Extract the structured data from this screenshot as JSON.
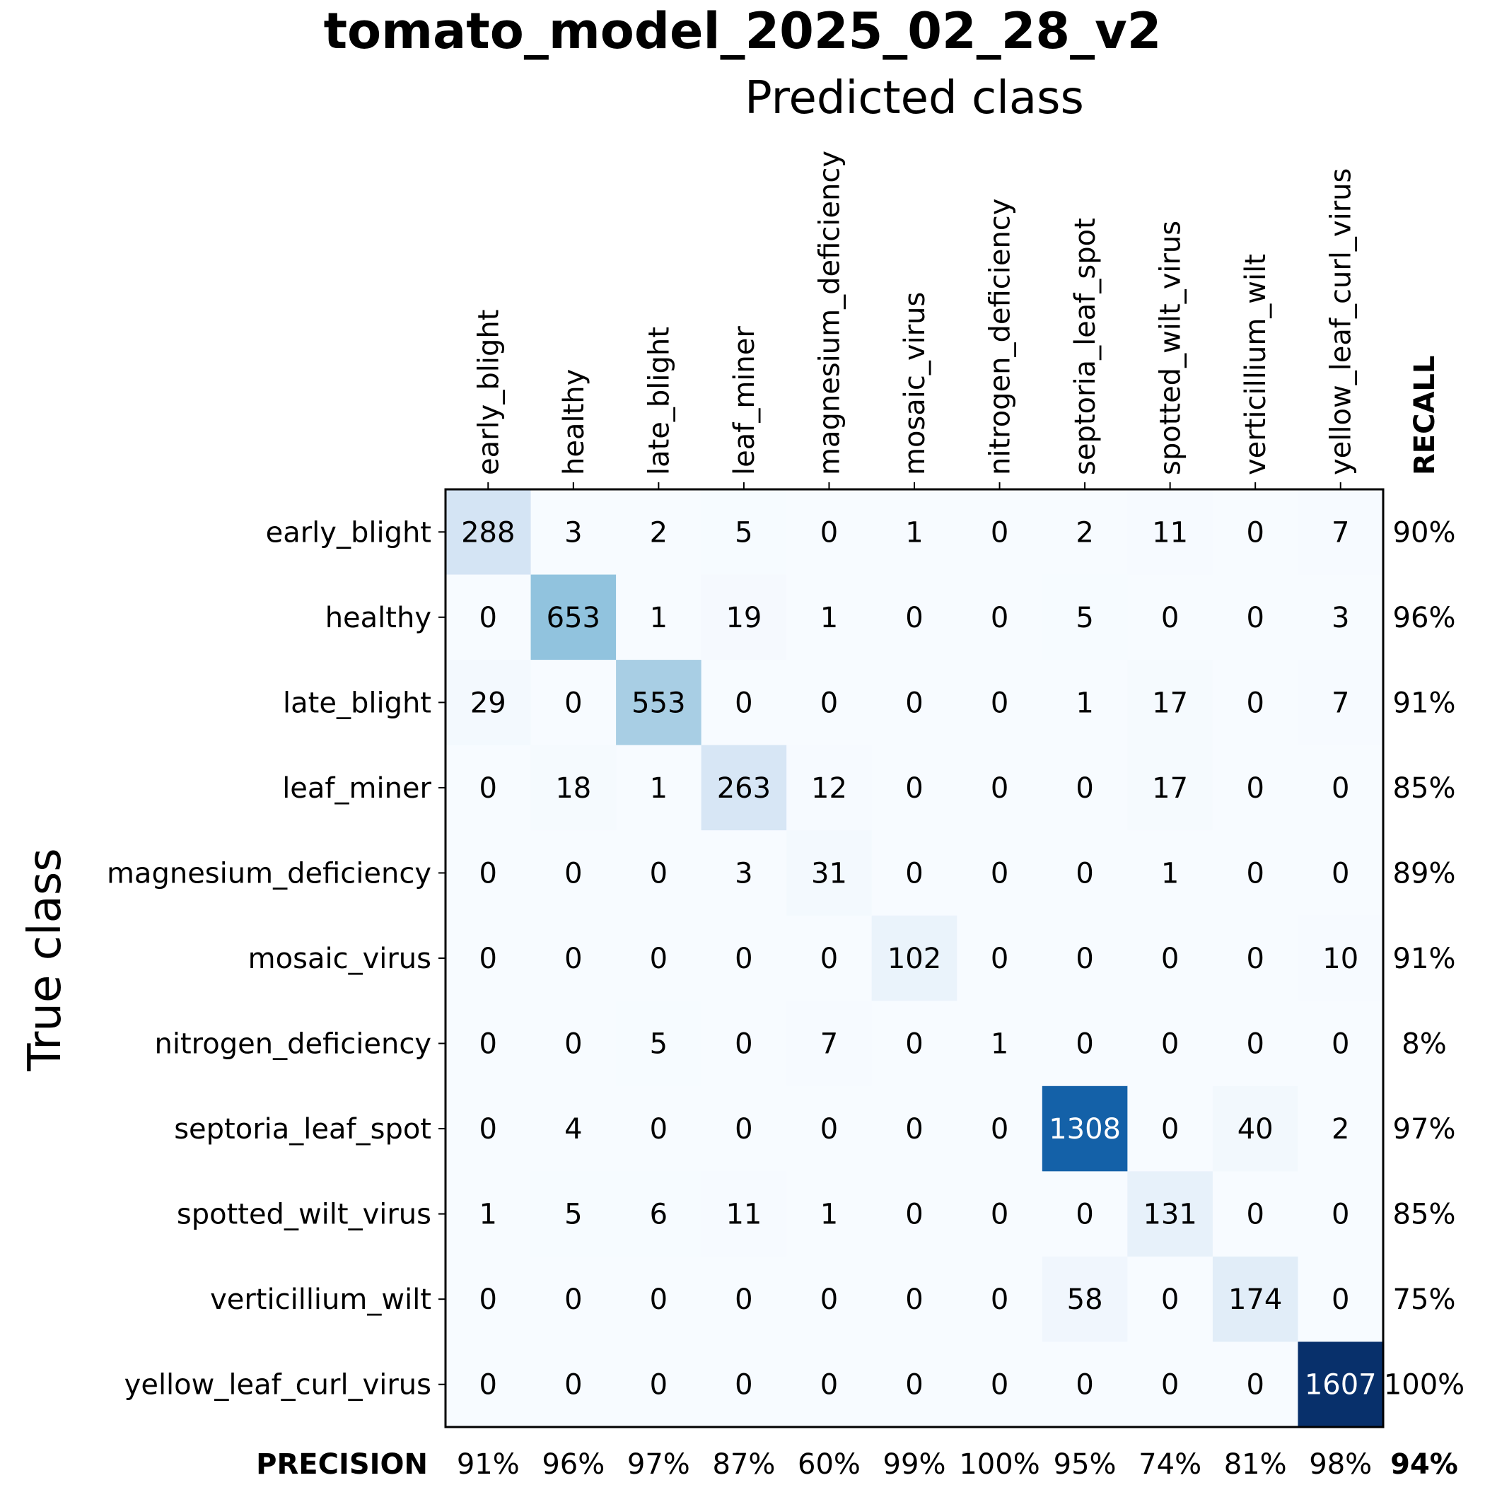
{
  "chart_data": {
    "type": "heatmap",
    "title": "tomato_model_2025_02_28_v2",
    "xlabel": "Predicted class",
    "ylabel": "True class",
    "colormap": "Blues",
    "color_low": "#f7fbff",
    "color_high": "#08306b",
    "value_max": 1607,
    "categories": [
      "early_blight",
      "healthy",
      "late_blight",
      "leaf_miner",
      "magnesium_deficiency",
      "mosaic_virus",
      "nitrogen_deficiency",
      "septoria_leaf_spot",
      "spotted_wilt_virus",
      "verticillium_wilt",
      "yellow_leaf_curl_virus"
    ],
    "matrix": [
      [
        288,
        3,
        2,
        5,
        0,
        1,
        0,
        2,
        11,
        0,
        7
      ],
      [
        0,
        653,
        1,
        19,
        1,
        0,
        0,
        5,
        0,
        0,
        3
      ],
      [
        29,
        0,
        553,
        0,
        0,
        0,
        0,
        1,
        17,
        0,
        7
      ],
      [
        0,
        18,
        1,
        263,
        12,
        0,
        0,
        0,
        17,
        0,
        0
      ],
      [
        0,
        0,
        0,
        3,
        31,
        0,
        0,
        0,
        1,
        0,
        0
      ],
      [
        0,
        0,
        0,
        0,
        0,
        102,
        0,
        0,
        0,
        0,
        10
      ],
      [
        0,
        0,
        5,
        0,
        7,
        0,
        1,
        0,
        0,
        0,
        0
      ],
      [
        0,
        4,
        0,
        0,
        0,
        0,
        0,
        1308,
        0,
        40,
        2
      ],
      [
        1,
        5,
        6,
        11,
        1,
        0,
        0,
        0,
        131,
        0,
        0
      ],
      [
        0,
        0,
        0,
        0,
        0,
        0,
        0,
        58,
        0,
        174,
        0
      ],
      [
        0,
        0,
        0,
        0,
        0,
        0,
        0,
        0,
        0,
        0,
        1607
      ]
    ],
    "recall_label": "RECALL",
    "recall": [
      "90%",
      "96%",
      "91%",
      "85%",
      "89%",
      "91%",
      "8%",
      "97%",
      "85%",
      "75%",
      "100%"
    ],
    "precision_label": "PRECISION",
    "precision": [
      "91%",
      "96%",
      "97%",
      "87%",
      "60%",
      "99%",
      "100%",
      "95%",
      "74%",
      "81%",
      "98%"
    ],
    "overall": "94%"
  }
}
